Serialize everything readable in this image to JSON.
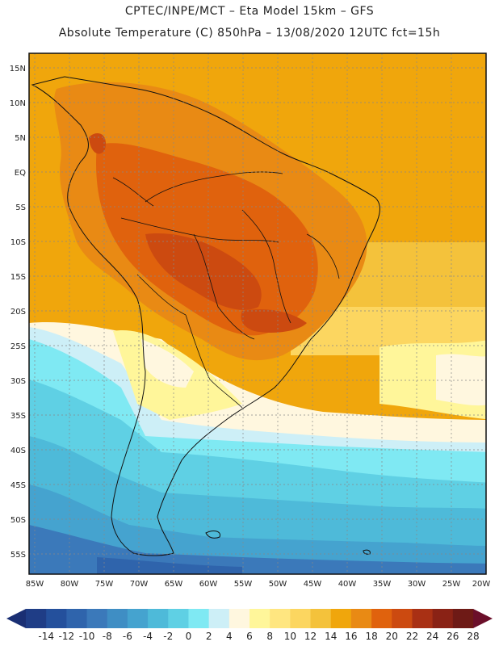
{
  "header": {
    "line1": "CPTEC/INPE/MCT –  Eta Model 15km – GFS",
    "line2": "Absolute Temperature (C) 850hPa – 13/08/2020 12UTC fct=15h"
  },
  "map": {
    "lat_labels": [
      "15N",
      "10N",
      "5N",
      "EQ",
      "5S",
      "10S",
      "15S",
      "20S",
      "25S",
      "30S",
      "35S",
      "40S",
      "45S",
      "50S",
      "55S"
    ],
    "lon_labels": [
      "85W",
      "80W",
      "75W",
      "70W",
      "65W",
      "60W",
      "55W",
      "50W",
      "45W",
      "40W",
      "35W",
      "30W",
      "25W",
      "20W"
    ],
    "grid": "dotted"
  },
  "colorbar": {
    "ticks": [
      "-14",
      "-12",
      "-10",
      "-8",
      "-6",
      "-4",
      "-2",
      "0",
      "2",
      "4",
      "6",
      "8",
      "10",
      "12",
      "14",
      "16",
      "18",
      "20",
      "22",
      "24",
      "26",
      "28"
    ],
    "colors": [
      "#1f3d86",
      "#24509c",
      "#2f64ac",
      "#3b79ba",
      "#3f8ec4",
      "#45a3cf",
      "#4ebad9",
      "#5fd0e4",
      "#7fe9f3",
      "#cdeff7",
      "#fff7df",
      "#fff69a",
      "#ffe680",
      "#fcd660",
      "#f4c23b",
      "#f0a60c",
      "#e98a14",
      "#e0620d",
      "#cc4a10",
      "#a93014",
      "#8a2215",
      "#6e1a16"
    ]
  }
}
